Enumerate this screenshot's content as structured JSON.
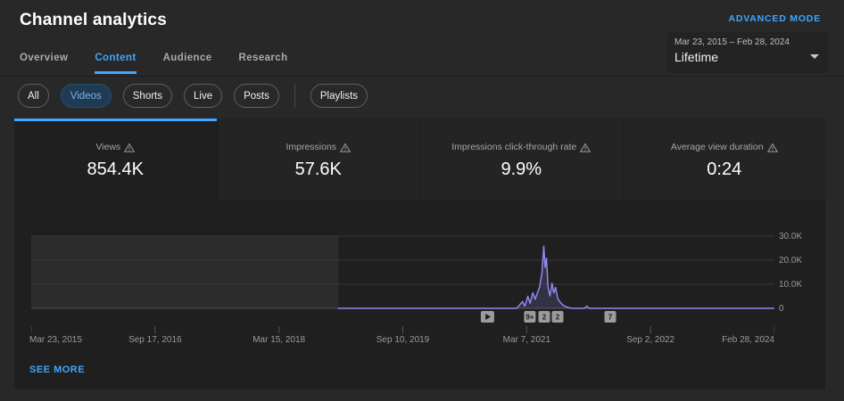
{
  "header": {
    "title": "Channel analytics",
    "advanced_mode_label": "ADVANCED MODE"
  },
  "date_picker": {
    "range": "Mar 23, 2015 – Feb 28, 2024",
    "preset": "Lifetime"
  },
  "tabs": [
    {
      "label": "Overview",
      "active": false
    },
    {
      "label": "Content",
      "active": true
    },
    {
      "label": "Audience",
      "active": false
    },
    {
      "label": "Research",
      "active": false
    }
  ],
  "chips": {
    "items": [
      {
        "label": "All",
        "selected": false
      },
      {
        "label": "Videos",
        "selected": true
      },
      {
        "label": "Shorts",
        "selected": false
      },
      {
        "label": "Live",
        "selected": false
      },
      {
        "label": "Posts",
        "selected": false
      },
      {
        "label": "Playlists",
        "selected": false
      }
    ]
  },
  "metric_cards": [
    {
      "label": "Views",
      "value": "854.4K",
      "selected": true,
      "icon": "warning-triangle-icon"
    },
    {
      "label": "Impressions",
      "value": "57.6K",
      "selected": false,
      "icon": "warning-triangle-icon"
    },
    {
      "label": "Impressions click-through rate",
      "value": "9.9%",
      "selected": false,
      "icon": "warning-triangle-icon"
    },
    {
      "label": "Average view duration",
      "value": "0:24",
      "selected": false,
      "icon": "warning-triangle-icon"
    }
  ],
  "see_more_label": "SEE MORE",
  "colors": {
    "accent": "#3ea6ff",
    "line": "#8f88ee",
    "page_bg": "#282828",
    "panel_bg": "#1f1f1f",
    "no_data_bg": "#2c2c2c"
  },
  "chart_data": {
    "type": "line",
    "title": "Views over time (Lifetime)",
    "x_range": [
      "2015-03-23",
      "2024-02-28"
    ],
    "ylim": [
      0,
      30000
    ],
    "legend": "none",
    "grid": "horizontal",
    "y_axis_side": "right",
    "y_ticks": [
      {
        "value": 30000,
        "label": "30.0K"
      },
      {
        "value": 20000,
        "label": "20.0K"
      },
      {
        "value": 10000,
        "label": "10.0K"
      },
      {
        "value": 0,
        "label": "0"
      }
    ],
    "x_ticks": [
      {
        "date": "2015-03-23",
        "label": "Mar 23, 2015"
      },
      {
        "date": "2016-09-17",
        "label": "Sep 17, 2016"
      },
      {
        "date": "2018-03-15",
        "label": "Mar 15, 2018"
      },
      {
        "date": "2019-09-10",
        "label": "Sep 10, 2019"
      },
      {
        "date": "2021-03-07",
        "label": "Mar 7, 2021"
      },
      {
        "date": "2022-09-02",
        "label": "Sep 2, 2022"
      },
      {
        "date": "2024-02-28",
        "label": "Feb 28, 2024"
      }
    ],
    "no_data_region": {
      "start": "2015-03-23",
      "end": "2018-12-01"
    },
    "series": [
      {
        "name": "Views",
        "color": "#8f88ee",
        "fill": "rgba(143,136,238,0.18)",
        "points": [
          [
            "2018-12-01",
            0
          ],
          [
            "2021-01-22",
            0
          ],
          [
            "2021-02-03",
            1300
          ],
          [
            "2021-02-17",
            2800
          ],
          [
            "2021-02-27",
            900
          ],
          [
            "2021-03-12",
            5000
          ],
          [
            "2021-03-22",
            2100
          ],
          [
            "2021-04-03",
            6500
          ],
          [
            "2021-04-13",
            3800
          ],
          [
            "2021-05-03",
            9000
          ],
          [
            "2021-05-13",
            14500
          ],
          [
            "2021-05-21",
            25800
          ],
          [
            "2021-05-27",
            17000
          ],
          [
            "2021-06-02",
            20800
          ],
          [
            "2021-06-09",
            8500
          ],
          [
            "2021-06-17",
            5200
          ],
          [
            "2021-06-26",
            10400
          ],
          [
            "2021-07-04",
            6400
          ],
          [
            "2021-07-12",
            8700
          ],
          [
            "2021-07-22",
            3900
          ],
          [
            "2021-08-03",
            2300
          ],
          [
            "2021-08-16",
            1100
          ],
          [
            "2021-09-03",
            400
          ],
          [
            "2021-09-22",
            0
          ],
          [
            "2021-11-16",
            0
          ],
          [
            "2021-11-25",
            900
          ],
          [
            "2021-12-06",
            0
          ],
          [
            "2024-02-28",
            0
          ]
        ]
      }
    ],
    "publish_markers": [
      {
        "date": "2020-09-16",
        "type": "play"
      },
      {
        "date": "2021-03-21",
        "type": "count",
        "label": "9+"
      },
      {
        "date": "2021-05-23",
        "type": "count",
        "label": "2"
      },
      {
        "date": "2021-07-21",
        "type": "count",
        "label": "2"
      },
      {
        "date": "2022-03-09",
        "type": "count",
        "label": "7"
      }
    ]
  }
}
